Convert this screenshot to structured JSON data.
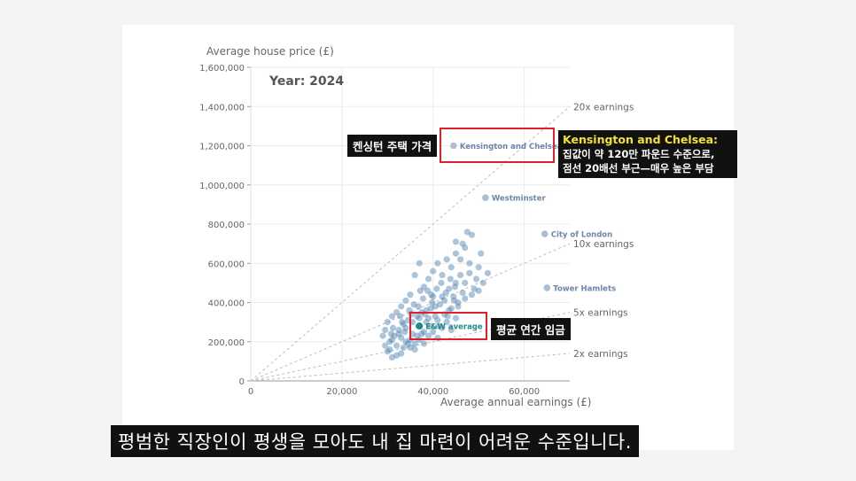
{
  "chart_data": {
    "type": "scatter",
    "title": "Year: 2024",
    "ylabel": "Average house price (£)",
    "xlabel": "Average annual earnings (£)",
    "xlim": [
      0,
      70000
    ],
    "ylim": [
      0,
      1600000
    ],
    "xticks": [
      0,
      20000,
      40000,
      60000
    ],
    "xtick_labels": [
      "0",
      "20,000",
      "40,000",
      "60,000"
    ],
    "yticks": [
      0,
      200000,
      400000,
      600000,
      800000,
      1000000,
      1200000,
      1400000,
      1600000
    ],
    "ytick_labels": [
      "0",
      "200,000",
      "400,000",
      "600,000",
      "800,000",
      "1,000,000",
      "1,200,000",
      "1,400,000",
      "1,600,000"
    ],
    "grid": true,
    "reference_lines": [
      {
        "label": "20x earnings",
        "multiplier": 20
      },
      {
        "label": "10x earnings",
        "multiplier": 10
      },
      {
        "label": "5x earnings",
        "multiplier": 5
      },
      {
        "label": "2x earnings",
        "multiplier": 2
      }
    ],
    "labeled_points": [
      {
        "label": "Kensington and Chelsea",
        "x": 44500,
        "y": 1200000
      },
      {
        "label": "Westminster",
        "x": 51500,
        "y": 935000
      },
      {
        "label": "City of London",
        "x": 64500,
        "y": 750000
      },
      {
        "label": "Tower Hamlets",
        "x": 65000,
        "y": 475000
      },
      {
        "label": "E&W average",
        "x": 37000,
        "y": 280000
      }
    ],
    "points": [
      [
        30000,
        150000
      ],
      [
        31000,
        120000
      ],
      [
        32000,
        180000
      ],
      [
        33000,
        140000
      ],
      [
        34000,
        200000
      ],
      [
        35000,
        170000
      ],
      [
        36000,
        160000
      ],
      [
        37000,
        210000
      ],
      [
        38000,
        190000
      ],
      [
        39000,
        230000
      ],
      [
        40000,
        250000
      ],
      [
        41000,
        220000
      ],
      [
        42000,
        270000
      ],
      [
        43000,
        300000
      ],
      [
        44000,
        260000
      ],
      [
        45000,
        320000
      ],
      [
        31500,
        230000
      ],
      [
        32500,
        260000
      ],
      [
        33500,
        290000
      ],
      [
        34500,
        310000
      ],
      [
        35500,
        240000
      ],
      [
        36500,
        330000
      ],
      [
        37500,
        350000
      ],
      [
        38500,
        300000
      ],
      [
        39500,
        370000
      ],
      [
        40500,
        330000
      ],
      [
        41500,
        390000
      ],
      [
        42500,
        410000
      ],
      [
        43500,
        360000
      ],
      [
        44500,
        430000
      ],
      [
        45500,
        400000
      ],
      [
        46500,
        450000
      ],
      [
        30500,
        200000
      ],
      [
        31200,
        270000
      ],
      [
        32800,
        330000
      ],
      [
        33800,
        250000
      ],
      [
        34800,
        360000
      ],
      [
        35800,
        390000
      ],
      [
        36800,
        280000
      ],
      [
        37800,
        420000
      ],
      [
        38800,
        460000
      ],
      [
        39800,
        400000
      ],
      [
        40800,
        470000
      ],
      [
        41800,
        500000
      ],
      [
        42800,
        450000
      ],
      [
        43800,
        520000
      ],
      [
        44800,
        480000
      ],
      [
        46000,
        540000
      ],
      [
        47000,
        500000
      ],
      [
        48000,
        550000
      ],
      [
        49000,
        470000
      ],
      [
        50000,
        580000
      ],
      [
        39000,
        520000
      ],
      [
        40000,
        560000
      ],
      [
        41000,
        600000
      ],
      [
        42000,
        540000
      ],
      [
        43000,
        620000
      ],
      [
        44000,
        580000
      ],
      [
        45000,
        650000
      ],
      [
        46000,
        620000
      ],
      [
        47000,
        680000
      ],
      [
        36000,
        540000
      ],
      [
        37000,
        600000
      ],
      [
        38000,
        480000
      ],
      [
        35000,
        440000
      ],
      [
        34000,
        410000
      ],
      [
        33000,
        380000
      ],
      [
        32000,
        350000
      ],
      [
        31000,
        330000
      ],
      [
        30000,
        300000
      ],
      [
        29500,
        260000
      ],
      [
        29000,
        230000
      ],
      [
        29500,
        180000
      ],
      [
        30500,
        160000
      ],
      [
        32000,
        130000
      ],
      [
        33500,
        170000
      ],
      [
        35000,
        210000
      ],
      [
        36500,
        230000
      ],
      [
        38000,
        250000
      ],
      [
        39500,
        280000
      ],
      [
        41000,
        310000
      ],
      [
        42500,
        340000
      ],
      [
        44000,
        370000
      ],
      [
        45500,
        380000
      ],
      [
        47000,
        420000
      ],
      [
        48500,
        440000
      ],
      [
        50000,
        460000
      ],
      [
        51000,
        500000
      ],
      [
        49500,
        520000
      ],
      [
        48000,
        600000
      ],
      [
        46500,
        700000
      ],
      [
        45000,
        710000
      ],
      [
        47500,
        760000
      ],
      [
        48500,
        745000
      ],
      [
        50500,
        650000
      ],
      [
        52000,
        550000
      ],
      [
        40000,
        430000
      ],
      [
        38500,
        360000
      ],
      [
        37000,
        320000
      ],
      [
        35500,
        300000
      ],
      [
        34000,
        270000
      ],
      [
        32500,
        240000
      ],
      [
        31000,
        210000
      ],
      [
        33000,
        220000
      ],
      [
        34500,
        190000
      ],
      [
        36000,
        190000
      ],
      [
        37500,
        240000
      ],
      [
        39000,
        320000
      ],
      [
        40500,
        380000
      ],
      [
        42000,
        430000
      ],
      [
        43500,
        470000
      ],
      [
        45000,
        500000
      ],
      [
        30800,
        240000
      ],
      [
        36800,
        380000
      ],
      [
        38200,
        340000
      ],
      [
        41200,
        280000
      ],
      [
        43200,
        330000
      ],
      [
        44600,
        410000
      ],
      [
        39600,
        440000
      ],
      [
        37200,
        460000
      ],
      [
        35200,
        340000
      ],
      [
        33200,
        300000
      ]
    ]
  },
  "annotations": {
    "left_callout": "켄싱턴 주택 가격",
    "right_callout_title": "Kensington and Chelsea:",
    "right_callout_line1": "집값이 약 120만 파운드 수준으로,",
    "right_callout_line2": "점선 20배선 부근—매우 높은 부담",
    "mid_callout": "평균 연간 임금"
  },
  "subtitle": "평범한 직장인이 평생을 모아도 내 집 마련이 어려운 수준입니다.",
  "colors": {
    "point": "#4a7fad",
    "labeled_point": "#a9bfd6",
    "average_point": "#1f8b87",
    "label_text": "#6d86a8",
    "highlight": "#e0212b",
    "callout_yellow": "#f5e232"
  }
}
